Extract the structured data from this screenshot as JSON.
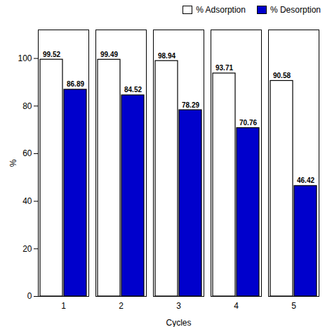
{
  "chart_data": {
    "type": "bar",
    "categories": [
      "1",
      "2",
      "3",
      "4",
      "5"
    ],
    "series": [
      {
        "name": "% Adsorption",
        "color": "#ffffff",
        "values": [
          99.52,
          99.49,
          98.94,
          93.71,
          90.58
        ]
      },
      {
        "name": "% Desorption",
        "color": "#0000cc",
        "values": [
          86.89,
          84.52,
          78.29,
          70.76,
          46.42
        ]
      }
    ],
    "xlabel": "Cycles",
    "ylabel": "%",
    "ylim": [
      0,
      112
    ],
    "yticks": [
      0,
      20,
      40,
      60,
      80,
      100
    ],
    "data_labels": true,
    "legend": "upper right"
  }
}
